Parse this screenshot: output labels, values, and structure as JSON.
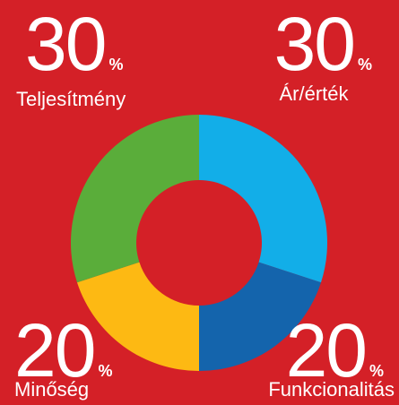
{
  "chart_data": {
    "type": "donut",
    "categories": [
      "Ár/érték",
      "Funkcionalitás",
      "Minőség",
      "Teljesítmény"
    ],
    "values": [
      30,
      20,
      20,
      30
    ],
    "colors": [
      "#12aee8",
      "#1464ac",
      "#fdb913",
      "#5aad3a"
    ],
    "unit": "%",
    "background": "#d42027"
  }
}
